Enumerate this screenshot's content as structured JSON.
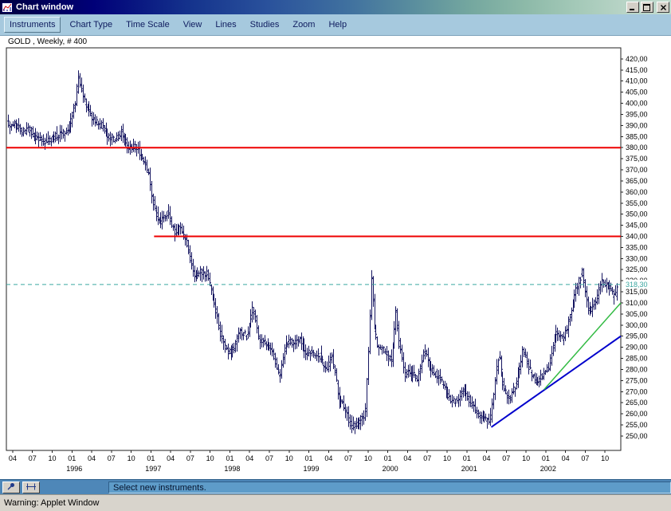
{
  "window": {
    "title": "Chart window"
  },
  "menu": {
    "items": [
      "Instruments",
      "Chart Type",
      "Time Scale",
      "View",
      "Lines",
      "Studies",
      "Zoom",
      "Help"
    ]
  },
  "chart": {
    "instrument_label": "GOLD , Weekly, # 400"
  },
  "status_bar": {
    "message": "Select new instruments."
  },
  "warning_bar": {
    "text": "Warning: Applet Window"
  },
  "icons": {
    "titlebar": "chart-window-icon",
    "window_controls": [
      "minimize-icon",
      "maximize-icon",
      "close-icon"
    ],
    "status_buttons": [
      "pin-icon",
      "crosshair-icon"
    ]
  },
  "axis": {
    "y": {
      "min": 250,
      "max": 420,
      "step": 5,
      "labels": [
        "420,00",
        "415,00",
        "410,00",
        "405,00",
        "400,00",
        "395,00",
        "390,00",
        "385,00",
        "380,00",
        "375,00",
        "370,00",
        "365,00",
        "360,00",
        "355,00",
        "350,00",
        "345,00",
        "340,00",
        "335,00",
        "330,00",
        "325,00",
        "320,00",
        "315,00",
        "310,00",
        "305,00",
        "300,00",
        "295,00",
        "290,00",
        "285,00",
        "280,00",
        "275,00",
        "270,00",
        "265,00",
        "260,00",
        "255,00",
        "250,00"
      ]
    },
    "x": {
      "month_ticks": [
        [
          1995,
          4,
          "04"
        ],
        [
          1995,
          7,
          "07"
        ],
        [
          1995,
          10,
          "10"
        ],
        [
          1996,
          1,
          "01"
        ],
        [
          1996,
          4,
          "04"
        ],
        [
          1996,
          7,
          "07"
        ],
        [
          1996,
          10,
          "10"
        ],
        [
          1997,
          1,
          "01"
        ],
        [
          1997,
          4,
          "04"
        ],
        [
          1997,
          7,
          "07"
        ],
        [
          1997,
          10,
          "10"
        ],
        [
          1998,
          1,
          "01"
        ],
        [
          1998,
          4,
          "04"
        ],
        [
          1998,
          7,
          "07"
        ],
        [
          1998,
          10,
          "10"
        ],
        [
          1999,
          1,
          "01"
        ],
        [
          1999,
          4,
          "04"
        ],
        [
          1999,
          7,
          "07"
        ],
        [
          1999,
          10,
          "10"
        ],
        [
          2000,
          1,
          "01"
        ],
        [
          2000,
          4,
          "04"
        ],
        [
          2000,
          7,
          "07"
        ],
        [
          2000,
          10,
          "10"
        ],
        [
          2001,
          1,
          "01"
        ],
        [
          2001,
          4,
          "04"
        ],
        [
          2001,
          7,
          "07"
        ],
        [
          2001,
          10,
          "10"
        ],
        [
          2002,
          1,
          "01"
        ],
        [
          2002,
          4,
          "04"
        ],
        [
          2002,
          7,
          "07"
        ],
        [
          2002,
          10,
          "10"
        ]
      ],
      "year_labels": [
        "1996",
        "1997",
        "1998",
        "1999",
        "2000",
        "2001",
        "2002"
      ]
    }
  },
  "chart_data": {
    "type": "ohlc",
    "title": "GOLD , Weekly, # 400",
    "instrument": "GOLD",
    "timescale": "Weekly",
    "bars_count": 400,
    "ylim": [
      250,
      420
    ],
    "x_range": {
      "start": "1995-03",
      "end": "2002-11"
    },
    "last_price": 318.3,
    "last_price_label": "318,30",
    "close_anchors": [
      [
        1995.19,
        391
      ],
      [
        1995.29,
        390
      ],
      [
        1995.37,
        387
      ],
      [
        1995.46,
        388
      ],
      [
        1995.54,
        384
      ],
      [
        1995.62,
        383
      ],
      [
        1995.71,
        383
      ],
      [
        1995.79,
        385
      ],
      [
        1995.87,
        386
      ],
      [
        1995.96,
        389
      ],
      [
        1996.04,
        400
      ],
      [
        1996.08,
        413
      ],
      [
        1996.13,
        403
      ],
      [
        1996.21,
        396
      ],
      [
        1996.29,
        392
      ],
      [
        1996.37,
        390
      ],
      [
        1996.46,
        385
      ],
      [
        1996.54,
        384
      ],
      [
        1996.62,
        387
      ],
      [
        1996.71,
        380
      ],
      [
        1996.79,
        381
      ],
      [
        1996.87,
        377
      ],
      [
        1996.96,
        369
      ],
      [
        1997.04,
        352
      ],
      [
        1997.12,
        346
      ],
      [
        1997.21,
        351
      ],
      [
        1997.29,
        342
      ],
      [
        1997.37,
        344
      ],
      [
        1997.46,
        336
      ],
      [
        1997.54,
        321
      ],
      [
        1997.62,
        324
      ],
      [
        1997.71,
        323
      ],
      [
        1997.79,
        312
      ],
      [
        1997.87,
        297
      ],
      [
        1997.96,
        288
      ],
      [
        1998.04,
        289
      ],
      [
        1998.12,
        297
      ],
      [
        1998.21,
        295
      ],
      [
        1998.29,
        308
      ],
      [
        1998.37,
        293
      ],
      [
        1998.46,
        292
      ],
      [
        1998.54,
        288
      ],
      [
        1998.62,
        276
      ],
      [
        1998.71,
        293
      ],
      [
        1998.79,
        292
      ],
      [
        1998.87,
        294
      ],
      [
        1998.96,
        288
      ],
      [
        1999.04,
        287
      ],
      [
        1999.12,
        287
      ],
      [
        1999.21,
        280
      ],
      [
        1999.29,
        286
      ],
      [
        1999.37,
        268
      ],
      [
        1999.46,
        261
      ],
      [
        1999.54,
        254
      ],
      [
        1999.62,
        256
      ],
      [
        1999.71,
        260
      ],
      [
        1999.76,
        295
      ],
      [
        1999.79,
        323
      ],
      [
        1999.83,
        297
      ],
      [
        1999.87,
        291
      ],
      [
        1999.96,
        288
      ],
      [
        2000.04,
        284
      ],
      [
        2000.1,
        306
      ],
      [
        2000.13,
        293
      ],
      [
        2000.21,
        278
      ],
      [
        2000.29,
        280
      ],
      [
        2000.37,
        275
      ],
      [
        2000.46,
        289
      ],
      [
        2000.54,
        281
      ],
      [
        2000.62,
        277
      ],
      [
        2000.71,
        273
      ],
      [
        2000.79,
        265
      ],
      [
        2000.87,
        266
      ],
      [
        2000.96,
        272
      ],
      [
        2001.04,
        265
      ],
      [
        2001.12,
        261
      ],
      [
        2001.21,
        258
      ],
      [
        2001.29,
        256
      ],
      [
        2001.37,
        280
      ],
      [
        2001.4,
        287
      ],
      [
        2001.46,
        272
      ],
      [
        2001.54,
        266
      ],
      [
        2001.62,
        274
      ],
      [
        2001.71,
        289
      ],
      [
        2001.79,
        280
      ],
      [
        2001.87,
        274
      ],
      [
        2001.96,
        277
      ],
      [
        2002.04,
        282
      ],
      [
        2002.12,
        296
      ],
      [
        2002.21,
        294
      ],
      [
        2002.29,
        302
      ],
      [
        2002.37,
        315
      ],
      [
        2002.46,
        324
      ],
      [
        2002.54,
        306
      ],
      [
        2002.62,
        310
      ],
      [
        2002.71,
        320
      ],
      [
        2002.79,
        317
      ],
      [
        2002.87,
        312
      ],
      [
        2002.9,
        318.3
      ]
    ],
    "horizontal_lines": [
      {
        "price": 380,
        "from": 1995.17,
        "to": 2002.95,
        "color": "#ee0000",
        "width": 2
      },
      {
        "price": 340,
        "from": 1997.04,
        "to": 2002.95,
        "color": "#ee0000",
        "width": 2
      }
    ],
    "trendlines": [
      {
        "from": [
          2001.31,
          254
        ],
        "to": [
          2002.95,
          295
        ],
        "color": "#0000cc",
        "width": 2
      },
      {
        "from": [
          2001.98,
          271
        ],
        "to": [
          2002.95,
          310
        ],
        "color": "#33bb44",
        "width": 1.5
      }
    ],
    "colors": {
      "bars": "#151560",
      "last_price_line": "#3aa6a0",
      "resistance": "#ee0000"
    }
  }
}
